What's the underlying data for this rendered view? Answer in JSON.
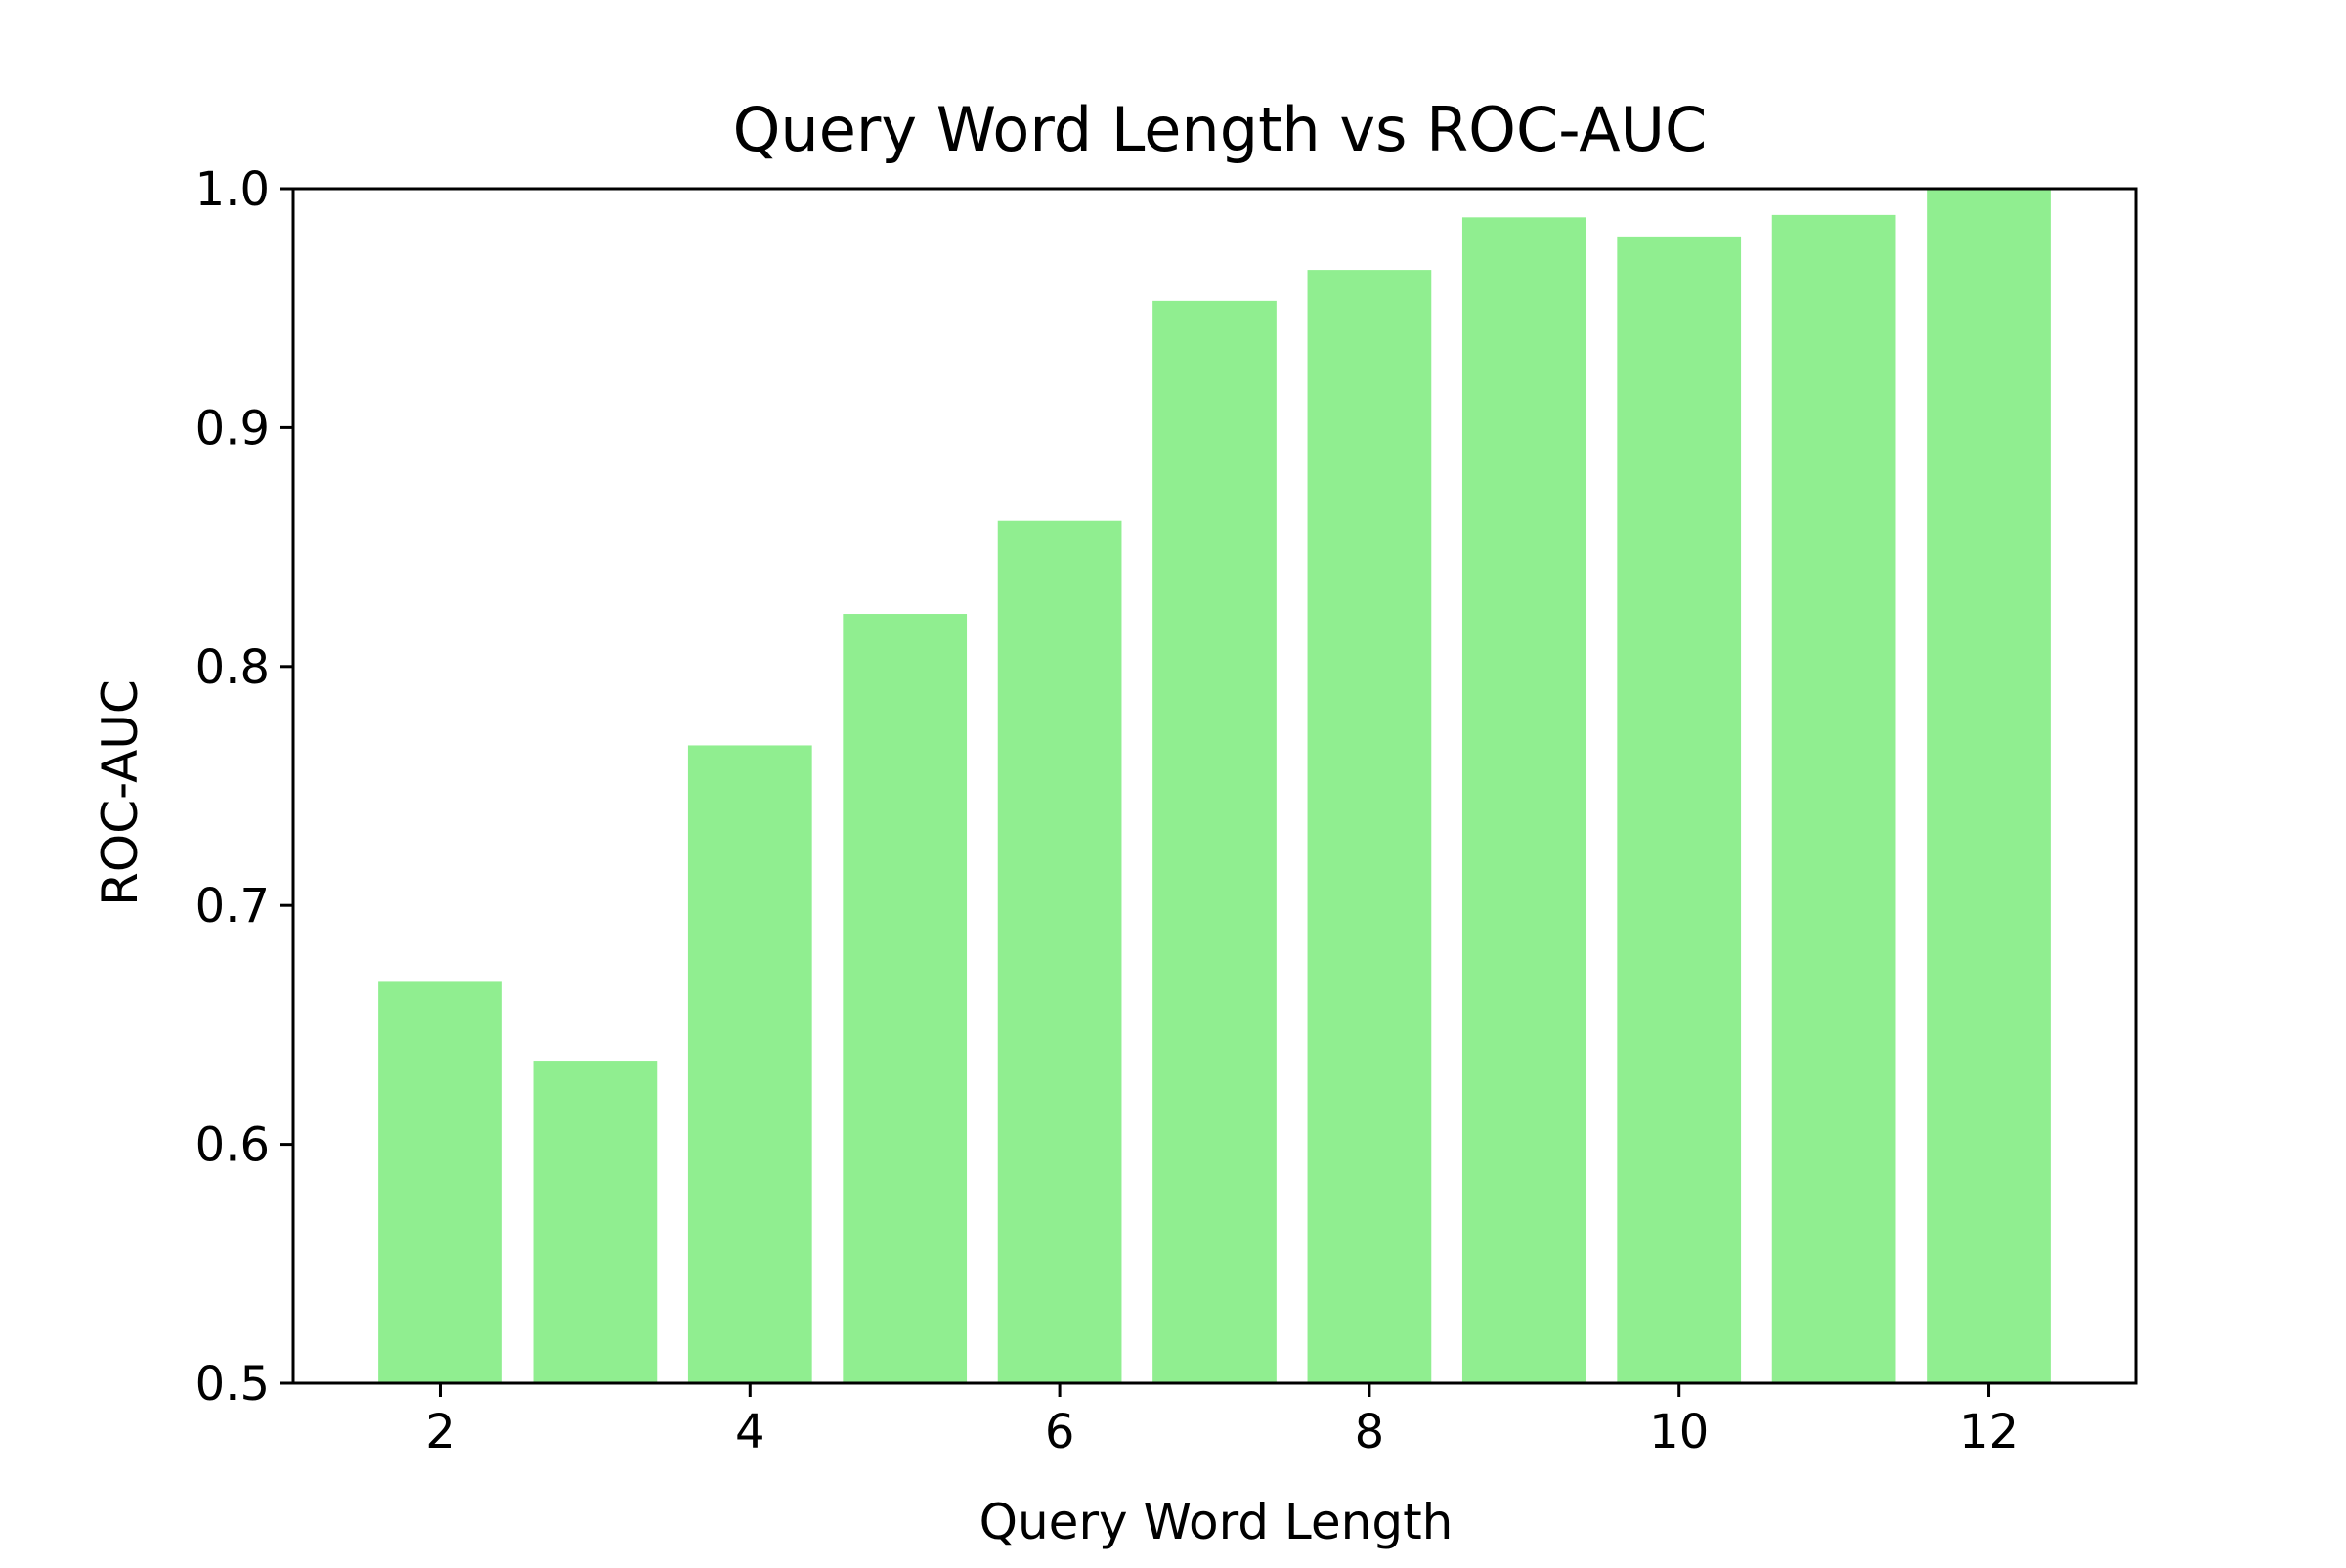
{
  "chart_data": {
    "type": "bar",
    "title": "Query Word Length vs ROC-AUC",
    "xlabel": "Query Word Length",
    "ylabel": "ROC-AUC",
    "x": [
      2,
      3,
      4,
      5,
      6,
      7,
      8,
      9,
      10,
      11,
      12
    ],
    "values": [
      0.668,
      0.635,
      0.767,
      0.822,
      0.861,
      0.953,
      0.966,
      0.988,
      0.98,
      0.989,
      1.0
    ],
    "xlim": [
      1.05,
      12.95
    ],
    "ylim": [
      0.5,
      1.0
    ],
    "xticks": [
      2,
      4,
      6,
      8,
      10,
      12
    ],
    "xtick_labels": [
      "2",
      "4",
      "6",
      "8",
      "10",
      "12"
    ],
    "yticks": [
      0.5,
      0.6,
      0.7,
      0.8,
      0.9,
      1.0
    ],
    "ytick_labels": [
      "0.5",
      "0.6",
      "0.7",
      "0.8",
      "0.9",
      "1.0"
    ],
    "bar_width": 0.8,
    "bar_color": "#90ee90",
    "grid": false,
    "legend": "none"
  }
}
